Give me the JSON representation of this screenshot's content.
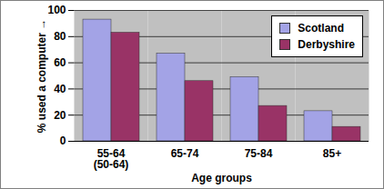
{
  "chart_data": {
    "type": "bar",
    "categories": [
      "55-64\n(50-64)",
      "65-74",
      "75-84",
      "85+"
    ],
    "series": [
      {
        "name": "Scotland",
        "color": "#a3a3e6",
        "values": [
          93,
          67,
          49,
          23
        ]
      },
      {
        "name": "Derbyshire",
        "color": "#993366",
        "values": [
          83,
          46,
          27,
          11
        ]
      }
    ],
    "xlabel": "Age groups",
    "ylabel": "% used a computer",
    "ylim": [
      0,
      100
    ],
    "yticks": [
      0,
      20,
      40,
      60,
      80,
      100
    ],
    "grid": true,
    "legend": "top-right"
  }
}
